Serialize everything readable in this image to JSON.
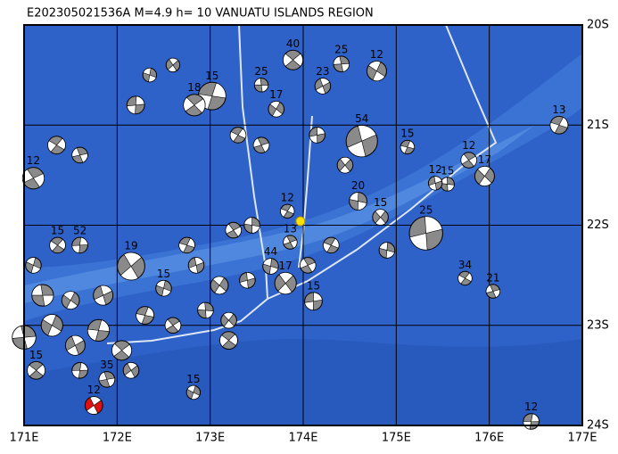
{
  "title": "E202305021536A  M=4.9 h= 10 VANUATU ISLANDS REGION",
  "map": {
    "lon_range": [
      171,
      177
    ],
    "lat_range": [
      -20,
      -24
    ],
    "lon_ticks": [
      {
        "value": 171,
        "label": "171E"
      },
      {
        "value": 172,
        "label": "172E"
      },
      {
        "value": 173,
        "label": "173E"
      },
      {
        "value": 174,
        "label": "174E"
      },
      {
        "value": 175,
        "label": "175E"
      },
      {
        "value": 176,
        "label": "176E"
      },
      {
        "value": 177,
        "label": "177E"
      }
    ],
    "lat_ticks": [
      {
        "value": -20,
        "label": "20S"
      },
      {
        "value": -21,
        "label": "21S"
      },
      {
        "value": -22,
        "label": "22S"
      },
      {
        "value": -23,
        "label": "23S"
      },
      {
        "value": -24,
        "label": "24S"
      }
    ],
    "epicenter": {
      "lon": 173.97,
      "lat": -21.96
    },
    "events": [
      {
        "lon": 173.89,
        "lat": -20.35,
        "depth": "40",
        "magnitude": 5.2
      },
      {
        "lon": 174.41,
        "lat": -20.39,
        "depth": "25",
        "magnitude": 5.0
      },
      {
        "lon": 174.79,
        "lat": -20.46,
        "depth": "12",
        "magnitude": 5.2
      },
      {
        "lon": 174.21,
        "lat": -20.61,
        "depth": "23",
        "magnitude": 5.0
      },
      {
        "lon": 173.02,
        "lat": -20.71,
        "depth": "15",
        "magnitude": 5.6
      },
      {
        "lon": 172.83,
        "lat": -20.8,
        "depth": "18",
        "magnitude": 5.3
      },
      {
        "lon": 173.55,
        "lat": -20.6,
        "depth": "25",
        "magnitude": 4.9
      },
      {
        "lon": 173.71,
        "lat": -20.84,
        "depth": "17",
        "magnitude": 5.0
      },
      {
        "lon": 174.63,
        "lat": -21.16,
        "depth": "54",
        "magnitude": 5.8
      },
      {
        "lon": 175.12,
        "lat": -21.22,
        "depth": "15",
        "magnitude": 4.9
      },
      {
        "lon": 175.78,
        "lat": -21.35,
        "depth": "12",
        "magnitude": 5.0
      },
      {
        "lon": 175.55,
        "lat": -21.59,
        "depth": "15",
        "magnitude": 4.9
      },
      {
        "lon": 175.95,
        "lat": -21.51,
        "depth": "17",
        "magnitude": 5.2
      },
      {
        "lon": 175.42,
        "lat": -21.58,
        "depth": "12",
        "magnitude": 4.9
      },
      {
        "lon": 176.75,
        "lat": -21.0,
        "depth": "13",
        "magnitude": 5.1
      },
      {
        "lon": 171.1,
        "lat": -21.53,
        "depth": "12",
        "magnitude": 5.3
      },
      {
        "lon": 174.59,
        "lat": -21.76,
        "depth": "20",
        "magnitude": 5.1
      },
      {
        "lon": 174.83,
        "lat": -21.92,
        "depth": "15",
        "magnitude": 5.0
      },
      {
        "lon": 175.32,
        "lat": -22.08,
        "depth": "25",
        "magnitude": 5.9
      },
      {
        "lon": 173.83,
        "lat": -21.86,
        "depth": "12",
        "magnitude": 4.9
      },
      {
        "lon": 173.86,
        "lat": -22.17,
        "depth": "13",
        "magnitude": 4.9
      },
      {
        "lon": 173.65,
        "lat": -22.41,
        "depth": "44",
        "magnitude": 5.0
      },
      {
        "lon": 173.81,
        "lat": -22.58,
        "depth": "17",
        "magnitude": 5.3
      },
      {
        "lon": 174.11,
        "lat": -22.76,
        "depth": "15",
        "magnitude": 5.1
      },
      {
        "lon": 175.74,
        "lat": -22.53,
        "depth": "34",
        "magnitude": 4.9
      },
      {
        "lon": 176.04,
        "lat": -22.66,
        "depth": "21",
        "magnitude": 4.9
      },
      {
        "lon": 172.5,
        "lat": -22.63,
        "depth": "15",
        "magnitude": 5.0
      },
      {
        "lon": 172.15,
        "lat": -22.41,
        "depth": "19",
        "magnitude": 5.6
      },
      {
        "lon": 171.6,
        "lat": -22.2,
        "depth": "52",
        "magnitude": 5.0
      },
      {
        "lon": 171.36,
        "lat": -22.2,
        "depth": "15",
        "magnitude": 5.0
      },
      {
        "lon": 171.89,
        "lat": -23.54,
        "depth": "35",
        "magnitude": 5.0
      },
      {
        "lon": 172.82,
        "lat": -23.67,
        "depth": "15",
        "magnitude": 4.9
      },
      {
        "lon": 171.75,
        "lat": -23.8,
        "depth": "12",
        "magnitude": 5.1,
        "highlight": true
      },
      {
        "lon": 176.45,
        "lat": -23.96,
        "depth": "12",
        "magnitude": 5.0
      },
      {
        "lon": 171.13,
        "lat": -23.45,
        "depth": "15",
        "magnitude": 5.1
      },
      {
        "lon": 171.0,
        "lat": -23.12,
        "magnitude": 5.4
      },
      {
        "lon": 171.3,
        "lat": -23.0,
        "magnitude": 5.3
      },
      {
        "lon": 171.55,
        "lat": -23.2,
        "magnitude": 5.2
      },
      {
        "lon": 171.8,
        "lat": -23.05,
        "magnitude": 5.3
      },
      {
        "lon": 172.05,
        "lat": -23.25,
        "magnitude": 5.2
      },
      {
        "lon": 171.2,
        "lat": -22.7,
        "magnitude": 5.3
      },
      {
        "lon": 171.5,
        "lat": -22.75,
        "magnitude": 5.1
      },
      {
        "lon": 171.85,
        "lat": -22.7,
        "magnitude": 5.2
      },
      {
        "lon": 172.3,
        "lat": -22.9,
        "magnitude": 5.1
      },
      {
        "lon": 172.6,
        "lat": -23.0,
        "magnitude": 5.0
      },
      {
        "lon": 172.95,
        "lat": -22.85,
        "magnitude": 5.0
      },
      {
        "lon": 173.1,
        "lat": -22.6,
        "magnitude": 5.1
      },
      {
        "lon": 172.85,
        "lat": -22.4,
        "magnitude": 5.0
      },
      {
        "lon": 172.75,
        "lat": -22.2,
        "magnitude": 5.0
      },
      {
        "lon": 173.25,
        "lat": -22.05,
        "magnitude": 5.0
      },
      {
        "lon": 173.45,
        "lat": -22.0,
        "magnitude": 5.0
      },
      {
        "lon": 173.2,
        "lat": -22.95,
        "magnitude": 5.0
      },
      {
        "lon": 173.4,
        "lat": -22.55,
        "magnitude": 5.0
      },
      {
        "lon": 174.3,
        "lat": -22.2,
        "magnitude": 5.0
      },
      {
        "lon": 174.05,
        "lat": -22.4,
        "magnitude": 5.0
      },
      {
        "lon": 174.9,
        "lat": -22.25,
        "magnitude": 5.0
      },
      {
        "lon": 174.45,
        "lat": -21.4,
        "magnitude": 5.0
      },
      {
        "lon": 174.15,
        "lat": -21.1,
        "magnitude": 5.0
      },
      {
        "lon": 173.3,
        "lat": -21.1,
        "magnitude": 5.0
      },
      {
        "lon": 173.55,
        "lat": -21.2,
        "magnitude": 5.0
      },
      {
        "lon": 172.35,
        "lat": -20.5,
        "magnitude": 4.9
      },
      {
        "lon": 172.6,
        "lat": -20.4,
        "magnitude": 4.9
      },
      {
        "lon": 172.2,
        "lat": -20.8,
        "magnitude": 5.1
      },
      {
        "lon": 171.35,
        "lat": -21.2,
        "magnitude": 5.1
      },
      {
        "lon": 171.6,
        "lat": -21.3,
        "magnitude": 5.0
      },
      {
        "lon": 171.1,
        "lat": -22.4,
        "magnitude": 5.0
      },
      {
        "lon": 172.15,
        "lat": -23.45,
        "magnitude": 5.0
      },
      {
        "lon": 171.6,
        "lat": -23.45,
        "magnitude": 5.0
      },
      {
        "lon": 173.2,
        "lat": -23.15,
        "magnitude": 5.1
      }
    ]
  }
}
